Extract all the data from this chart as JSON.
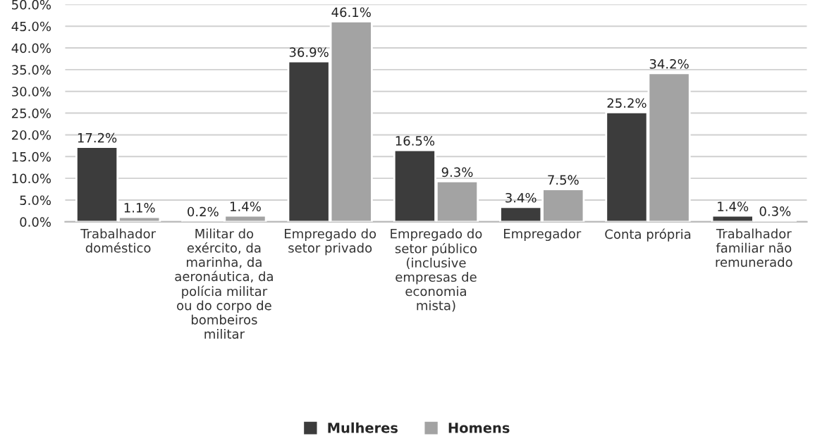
{
  "chart_data": {
    "type": "bar",
    "categories": [
      "Trabalhador\ndoméstico",
      "Militar do\nexército, da\nmarinha, da\naeronáutica, da\npolícia militar\nou do corpo de\nbombeiros\nmilitar",
      "Empregado do\nsetor privado",
      "Empregado do\nsetor público\n(inclusive\nempresas de\neconomia\nmista)",
      "Empregador",
      "Conta própria",
      "Trabalhador\nfamiliar não\nremunerado"
    ],
    "series": [
      {
        "name": "Mulheres",
        "color": "#3c3c3c",
        "values": [
          17.2,
          0.2,
          36.9,
          16.5,
          3.4,
          25.2,
          1.4
        ],
        "value_labels": [
          "17.2%",
          "0.2%",
          "36.9%",
          "16.5%",
          "3.4%",
          "25.2%",
          "1.4%"
        ]
      },
      {
        "name": "Homens",
        "color": "#a3a3a3",
        "values": [
          1.1,
          1.4,
          46.1,
          9.3,
          7.5,
          34.2,
          0.3
        ],
        "value_labels": [
          "1.1%",
          "1.4%",
          "46.1%",
          "9.3%",
          "7.5%",
          "34.2%",
          "0.3%"
        ]
      }
    ],
    "ylim": [
      0,
      50
    ],
    "yticks": [
      {
        "value": 0,
        "label": "0.0%"
      },
      {
        "value": 5,
        "label": "5.0%"
      },
      {
        "value": 10,
        "label": "10.0%"
      },
      {
        "value": 15,
        "label": "15.0%"
      },
      {
        "value": 20,
        "label": "20.0%"
      },
      {
        "value": 25,
        "label": "25.0%"
      },
      {
        "value": 30,
        "label": "30.0%"
      },
      {
        "value": 35,
        "label": "35.0%"
      },
      {
        "value": 40,
        "label": "40.0%"
      },
      {
        "value": 45,
        "label": "45.0%"
      },
      {
        "value": 50,
        "label": "50.0%"
      }
    ],
    "grid": "y",
    "legend": "bottom"
  }
}
